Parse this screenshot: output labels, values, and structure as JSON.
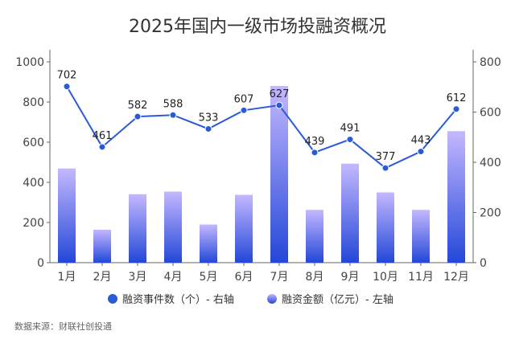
{
  "chart_data": {
    "type": "bar+line",
    "title": "2025年国内一级市场投融资概况",
    "categories": [
      "1月",
      "2月",
      "3月",
      "4月",
      "5月",
      "6月",
      "7月",
      "8月",
      "9月",
      "10月",
      "11月",
      "12月"
    ],
    "series": [
      {
        "name": "融资事件数（个）- 右轴",
        "type": "line",
        "axis": "right",
        "color": "#2a5bd7",
        "values": [
          702,
          461,
          582,
          588,
          533,
          607,
          627,
          439,
          491,
          377,
          443,
          612
        ]
      },
      {
        "name": "融资金额（亿元）- 左轴",
        "type": "bar",
        "axis": "left",
        "color_top": "#c4b8ff",
        "color_bottom": "#2347d8",
        "values": [
          469,
          164,
          341,
          354,
          190,
          338,
          880,
          263,
          493,
          350,
          263,
          655
        ]
      }
    ],
    "left_axis": {
      "range": [
        0,
        1000
      ],
      "ticks": [
        0,
        200,
        400,
        600,
        800,
        1000
      ]
    },
    "right_axis": {
      "range": [
        0,
        800
      ],
      "ticks": [
        0,
        200,
        400,
        600,
        800
      ]
    },
    "grid": false,
    "legend_placement": "bottom",
    "source": "数据来源：财联社创投通"
  }
}
